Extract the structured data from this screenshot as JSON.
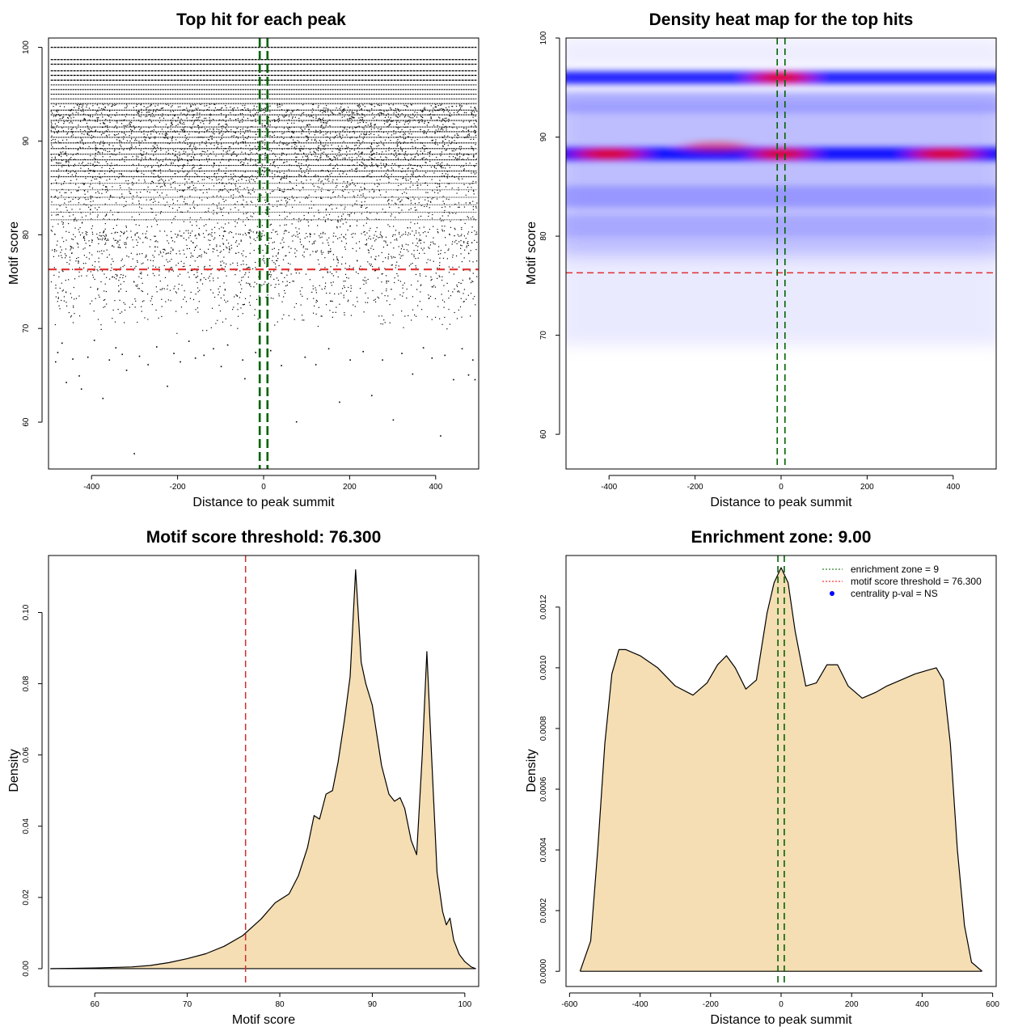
{
  "chart_data": [
    {
      "type": "scatter",
      "title": "Top hit for each peak",
      "xlabel": "Distance to peak summit",
      "ylabel": "Motif score",
      "xlim": [
        -500,
        500
      ],
      "ylim": [
        55,
        101
      ],
      "xticks": [
        -400,
        -200,
        0,
        200,
        400
      ],
      "yticks": [
        60,
        70,
        80,
        90,
        100
      ],
      "x_range_points": [
        -495,
        495
      ],
      "threshold_y": 76.3,
      "enrichment_zone_x": [
        -9,
        9
      ],
      "dense_score_levels": [
        100,
        98.7,
        98.2,
        97.5,
        97.0,
        96.5,
        96.0,
        95.5,
        95.0,
        94.5,
        94.0,
        93.3,
        92.8,
        92.2,
        91.5,
        91.0,
        90.4,
        89.8,
        89.2,
        88.6,
        88.0,
        87.4,
        86.8,
        86.2,
        85.5,
        84.8,
        84.0,
        83.2,
        82.4,
        81.6
      ],
      "sparse_points": [
        [
          -485,
          66.5
        ],
        [
          -480,
          67.5
        ],
        [
          -470,
          68.5
        ],
        [
          -460,
          64.3
        ],
        [
          -445,
          66.8
        ],
        [
          -430,
          65.0
        ],
        [
          -425,
          63.6
        ],
        [
          -410,
          67.0
        ],
        [
          -395,
          68.8
        ],
        [
          -375,
          62.6
        ],
        [
          -360,
          66.7
        ],
        [
          -345,
          68.0
        ],
        [
          -330,
          67.3
        ],
        [
          -320,
          65.6
        ],
        [
          -302,
          56.7
        ],
        [
          -290,
          67.1
        ],
        [
          -270,
          66.2
        ],
        [
          -250,
          68.1
        ],
        [
          -225,
          63.9
        ],
        [
          -210,
          67.4
        ],
        [
          -195,
          66.5
        ],
        [
          -175,
          68.7
        ],
        [
          -160,
          66.9
        ],
        [
          -140,
          67.2
        ],
        [
          -118,
          67.9
        ],
        [
          -100,
          66.0
        ],
        [
          -85,
          68.3
        ],
        [
          -50,
          66.7
        ],
        [
          -45,
          64.7
        ],
        [
          -20,
          67.5
        ],
        [
          15,
          67.7
        ],
        [
          40,
          66.1
        ],
        [
          75,
          60.1
        ],
        [
          95,
          67.0
        ],
        [
          120,
          66.2
        ],
        [
          150,
          67.9
        ],
        [
          175,
          62.2
        ],
        [
          200,
          66.7
        ],
        [
          230,
          67.6
        ],
        [
          250,
          62.9
        ],
        [
          275,
          66.7
        ],
        [
          300,
          60.3
        ],
        [
          320,
          67.4
        ],
        [
          345,
          65.2
        ],
        [
          370,
          68.0
        ],
        [
          390,
          66.9
        ],
        [
          410,
          58.6
        ],
        [
          420,
          67.2
        ],
        [
          440,
          64.6
        ],
        [
          460,
          67.9
        ],
        [
          475,
          65.1
        ],
        [
          490,
          64.6
        ],
        [
          485,
          66.7
        ]
      ]
    },
    {
      "type": "heatmap",
      "title": "Density heat map for the top hits",
      "xlabel": "Distance to peak summit",
      "ylabel": "Motif score",
      "xlim": [
        -500,
        500
      ],
      "ylim": [
        56.5,
        100
      ],
      "xticks": [
        -400,
        -200,
        0,
        200,
        400
      ],
      "yticks": [
        60,
        70,
        80,
        90,
        100
      ],
      "colormap": [
        "#ffffff",
        "#0000ff",
        "#ff0000"
      ],
      "hot_bands": [
        {
          "y": 96.0,
          "intensity": 0.85
        },
        {
          "y": 88.3,
          "intensity": 0.9
        },
        {
          "y": 93.5,
          "intensity": 0.3
        },
        {
          "y": 84.0,
          "intensity": 0.35
        },
        {
          "y": 81.0,
          "intensity": 0.2
        }
      ],
      "hot_spots": [
        {
          "x": 0,
          "y": 96.0,
          "label": "peak"
        },
        {
          "x": 0,
          "y": 88.3,
          "label": "peak"
        },
        {
          "x": -400,
          "y": 88.3,
          "label": "peak"
        },
        {
          "x": 380,
          "y": 88.3,
          "label": "peak"
        },
        {
          "x": -150,
          "y": 89.0,
          "label": "peak"
        }
      ],
      "threshold_y": 76.3,
      "enrichment_zone_x": [
        -9,
        9
      ]
    },
    {
      "type": "area",
      "title": "Motif score threshold: 76.300",
      "xlabel": "Motif score",
      "ylabel": "Density",
      "xlim": [
        55,
        101.5
      ],
      "ylim": [
        -0.005,
        0.116
      ],
      "xticks": [
        60,
        70,
        80,
        90,
        100
      ],
      "yticks": [
        0.0,
        0.02,
        0.04,
        0.06,
        0.08,
        0.1
      ],
      "ytick_labels": [
        "0.00",
        "0.02",
        "0.04",
        "0.06",
        "0.08",
        "0.10"
      ],
      "fill": "#F5DEB3",
      "threshold_x": 76.3,
      "x": [
        55.2,
        60,
        64,
        66,
        68,
        70,
        72,
        74,
        76,
        78,
        79.5,
        81,
        82,
        83,
        83.7,
        84.3,
        85,
        85.7,
        86.3,
        87,
        87.6,
        88.2,
        88.8,
        89.3,
        90,
        91,
        91.8,
        92.4,
        93,
        93.5,
        94.2,
        94.8,
        95.4,
        95.9,
        96.4,
        97,
        97.6,
        98,
        98.4,
        98.8,
        99.4,
        100,
        100.7,
        101.2
      ],
      "y": [
        0.0,
        0.0002,
        0.0005,
        0.0009,
        0.0017,
        0.0028,
        0.0042,
        0.0063,
        0.0093,
        0.014,
        0.0185,
        0.021,
        0.026,
        0.034,
        0.043,
        0.042,
        0.049,
        0.05,
        0.058,
        0.07,
        0.082,
        0.112,
        0.086,
        0.08,
        0.074,
        0.057,
        0.049,
        0.047,
        0.048,
        0.045,
        0.036,
        0.032,
        0.06,
        0.089,
        0.06,
        0.027,
        0.016,
        0.0123,
        0.0142,
        0.008,
        0.004,
        0.002,
        0.0005,
        0.0
      ]
    },
    {
      "type": "area",
      "title": "Enrichment zone: 9.00",
      "xlabel": "Distance to peak summit",
      "ylabel": "Density",
      "xlim": [
        -610,
        610
      ],
      "ylim": [
        -5e-05,
        0.00137
      ],
      "xticks": [
        -600,
        -400,
        -200,
        0,
        200,
        400,
        600
      ],
      "yticks": [
        0.0,
        0.0002,
        0.0004,
        0.0006,
        0.0008,
        0.001,
        0.0012
      ],
      "ytick_labels": [
        "0.0000",
        "0.0002",
        "0.0004",
        "0.0006",
        "0.0008",
        "0.0010",
        "0.0012"
      ],
      "fill": "#F5DEB3",
      "enrichment_zone_x": [
        -9,
        9
      ],
      "x": [
        -570,
        -540,
        -520,
        -500,
        -480,
        -460,
        -440,
        -400,
        -350,
        -300,
        -250,
        -210,
        -180,
        -155,
        -130,
        -100,
        -70,
        -40,
        -20,
        0,
        20,
        40,
        70,
        100,
        130,
        160,
        190,
        230,
        270,
        300,
        340,
        380,
        410,
        440,
        460,
        480,
        500,
        520,
        540,
        570
      ],
      "y": [
        0.0,
        0.0001,
        0.0004,
        0.00075,
        0.00098,
        0.00106,
        0.00106,
        0.00104,
        0.001,
        0.00094,
        0.00091,
        0.00095,
        0.00101,
        0.00104,
        0.001,
        0.00093,
        0.00096,
        0.00118,
        0.00128,
        0.00133,
        0.00128,
        0.00112,
        0.00094,
        0.00095,
        0.00101,
        0.00101,
        0.00094,
        0.0009,
        0.00092,
        0.00094,
        0.00096,
        0.00098,
        0.00099,
        0.001,
        0.00096,
        0.00075,
        0.0004,
        0.00015,
        3e-05,
        0.0
      ]
    }
  ],
  "legend": {
    "items": [
      {
        "label": "enrichment zone = 9",
        "color": "#006400",
        "style": "dotted-line"
      },
      {
        "label": "motif score threshold = 76.300",
        "color": "#ff0000",
        "style": "dotted-line"
      },
      {
        "label": "centrality p-val = NS",
        "color": "#0000ff",
        "style": "dot"
      }
    ],
    "placement": "top-right"
  }
}
